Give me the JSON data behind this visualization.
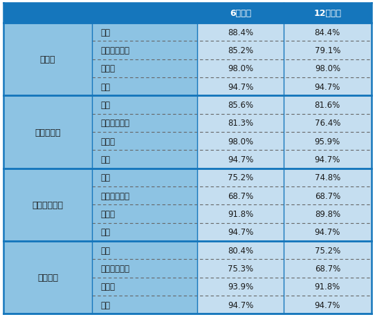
{
  "header_bg": "#1576BC",
  "header_text_color": "#FFFFFF",
  "group_bg": "#8DC3E3",
  "data_bg": "#C5DEF0",
  "border_color": "#1576BC",
  "dashed_color": "#666666",
  "text_color": "#1a1a1a",
  "col_headers": [
    "6カ月後",
    "12カ月後"
  ],
  "groups": [
    {
      "name": "英国株",
      "rows": [
        {
          "label": "全体",
          "v6": "88.4%",
          "v12": "84.4%"
        },
        {
          "label": "軽症・無症状",
          "v6": "85.2%",
          "v12": "79.1%"
        },
        {
          "label": "中等症",
          "v6": "98.0%",
          "v12": "98.0%"
        },
        {
          "label": "重症",
          "v6": "94.7%",
          "v12": "94.7%"
        }
      ]
    },
    {
      "name": "ブラジル株",
      "rows": [
        {
          "label": "全体",
          "v6": "85.6%",
          "v12": "81.6%"
        },
        {
          "label": "軽症・無症状",
          "v6": "81.3%",
          "v12": "76.4%"
        },
        {
          "label": "中等症",
          "v6": "98.0%",
          "v12": "95.9%"
        },
        {
          "label": "重症",
          "v6": "94.7%",
          "v12": "94.7%"
        }
      ]
    },
    {
      "name": "南アフリカ株",
      "rows": [
        {
          "label": "全体",
          "v6": "75.2%",
          "v12": "74.8%"
        },
        {
          "label": "軽症・無症状",
          "v6": "68.7%",
          "v12": "68.7%"
        },
        {
          "label": "中等症",
          "v6": "91.8%",
          "v12": "89.8%"
        },
        {
          "label": "重症",
          "v6": "94.7%",
          "v12": "94.7%"
        }
      ]
    },
    {
      "name": "インド株",
      "rows": [
        {
          "label": "全体",
          "v6": "80.4%",
          "v12": "75.2%"
        },
        {
          "label": "軽症・無症状",
          "v6": "75.3%",
          "v12": "68.7%"
        },
        {
          "label": "中等症",
          "v6": "93.9%",
          "v12": "91.8%"
        },
        {
          "label": "重症",
          "v6": "94.7%",
          "v12": "94.7%"
        }
      ]
    }
  ],
  "figsize": [
    5.42,
    4.6
  ],
  "dpi": 100
}
